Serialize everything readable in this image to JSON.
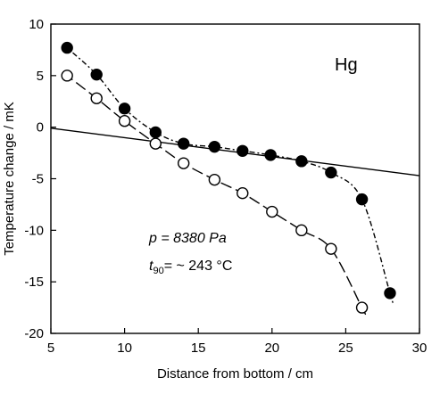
{
  "chart_data": {
    "type": "scatter",
    "title": "",
    "xlabel": "Distance from bottom / cm",
    "ylabel": "Temperature change / mK",
    "xlim": [
      5,
      30
    ],
    "ylim": [
      -20,
      10
    ],
    "xticks": [
      5,
      10,
      15,
      20,
      25,
      30
    ],
    "yticks": [
      -20,
      -15,
      -10,
      -5,
      0,
      5,
      10
    ],
    "grid": false,
    "legend": "none",
    "annotations": {
      "element": "Hg",
      "pressure": "p = 8380 Pa",
      "t90_prefix": "t",
      "t90_sub": "90",
      "t90_suffix": "= ~ 243 °C"
    },
    "series": [
      {
        "marker": "filled-circle",
        "line": "dash-dot",
        "x": [
          6.1,
          8.1,
          10.0,
          12.1,
          14.0,
          16.1,
          18.0,
          19.9,
          22.0,
          24.0,
          26.1,
          28.0
        ],
        "y": [
          7.7,
          5.1,
          1.8,
          -0.5,
          -1.6,
          -1.9,
          -2.3,
          -2.7,
          -3.3,
          -4.4,
          -7.0,
          -16.1
        ]
      },
      {
        "marker": "open-circle",
        "line": "long-dash",
        "x": [
          6.1,
          8.1,
          10.0,
          12.1,
          14.0,
          16.1,
          18.0,
          20.0,
          22.0,
          24.0,
          26.1
        ],
        "y": [
          5.0,
          2.8,
          0.6,
          -1.6,
          -3.5,
          -5.1,
          -6.4,
          -8.2,
          -10.0,
          -11.8,
          -17.5
        ]
      },
      {
        "marker": "none",
        "line": "solid",
        "x": [
          5,
          30
        ],
        "y": [
          -0.1,
          -4.7
        ]
      }
    ]
  }
}
